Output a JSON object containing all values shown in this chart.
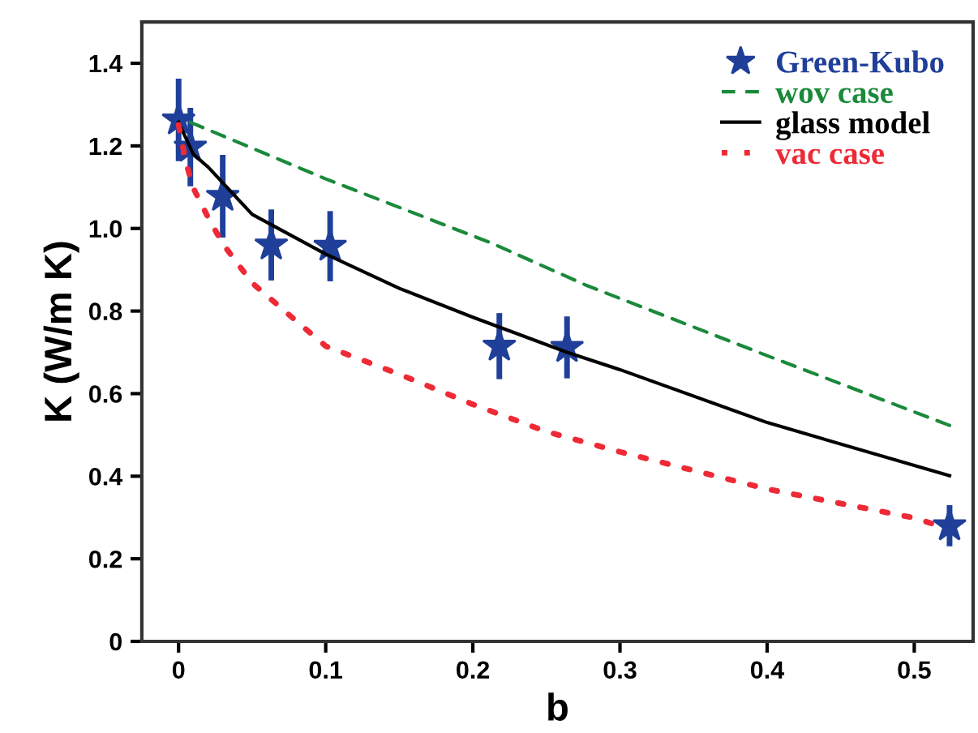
{
  "chart_data": {
    "type": "line",
    "xlabel": "b",
    "ylabel": "K (W/m K)",
    "xlim": [
      -0.025,
      0.54
    ],
    "ylim": [
      0,
      1.5
    ],
    "xticks": [
      0,
      0.1,
      0.2,
      0.3,
      0.4,
      0.5
    ],
    "yticks": [
      0,
      0.2,
      0.4,
      0.6,
      0.8,
      {
        "value": 1,
        "label": "1.0"
      },
      1.2,
      1.4
    ],
    "grid": false,
    "legend": "top right",
    "series": [
      {
        "name": "Green-Kubo",
        "type": "scatter",
        "marker": "star",
        "color": "#1f3f99",
        "x": [
          0,
          0.008,
          0.03,
          0.063,
          0.103,
          0.218,
          0.264,
          0.524
        ],
        "values": [
          1.263,
          1.197,
          1.078,
          0.96,
          0.957,
          0.715,
          0.712,
          0.28
        ],
        "errors": [
          0.1,
          0.095,
          0.1,
          0.086,
          0.085,
          0.08,
          0.075,
          0.05
        ]
      },
      {
        "name": "wov case",
        "line_style": "dashed",
        "color": "#1a8a3a",
        "x": [
          0.008,
          0.1,
          0.213,
          0.278,
          0.4,
          0.524
        ],
        "values": [
          1.257,
          1.12,
          0.964,
          0.861,
          0.692,
          0.523
        ]
      },
      {
        "name": "glass model",
        "line_style": "solid",
        "color": "#000000",
        "x": [
          0,
          0.01,
          0.02,
          0.05,
          0.1,
          0.15,
          0.2,
          0.264,
          0.3,
          0.4,
          0.524
        ],
        "values": [
          1.257,
          1.18,
          1.149,
          1.034,
          0.938,
          0.855,
          0.785,
          0.7,
          0.658,
          0.53,
          0.401
        ]
      },
      {
        "name": "vac case",
        "line_style": "dotted",
        "color": "#ee2a36",
        "x": [
          0,
          0.005,
          0.01,
          0.02,
          0.03,
          0.05,
          0.075,
          0.1,
          0.15,
          0.2,
          0.25,
          0.3,
          0.4,
          0.5,
          0.515
        ],
        "values": [
          1.251,
          1.16,
          1.098,
          1.027,
          0.963,
          0.868,
          0.791,
          0.715,
          0.647,
          0.574,
          0.508,
          0.459,
          0.369,
          0.299,
          0.282
        ]
      }
    ]
  }
}
